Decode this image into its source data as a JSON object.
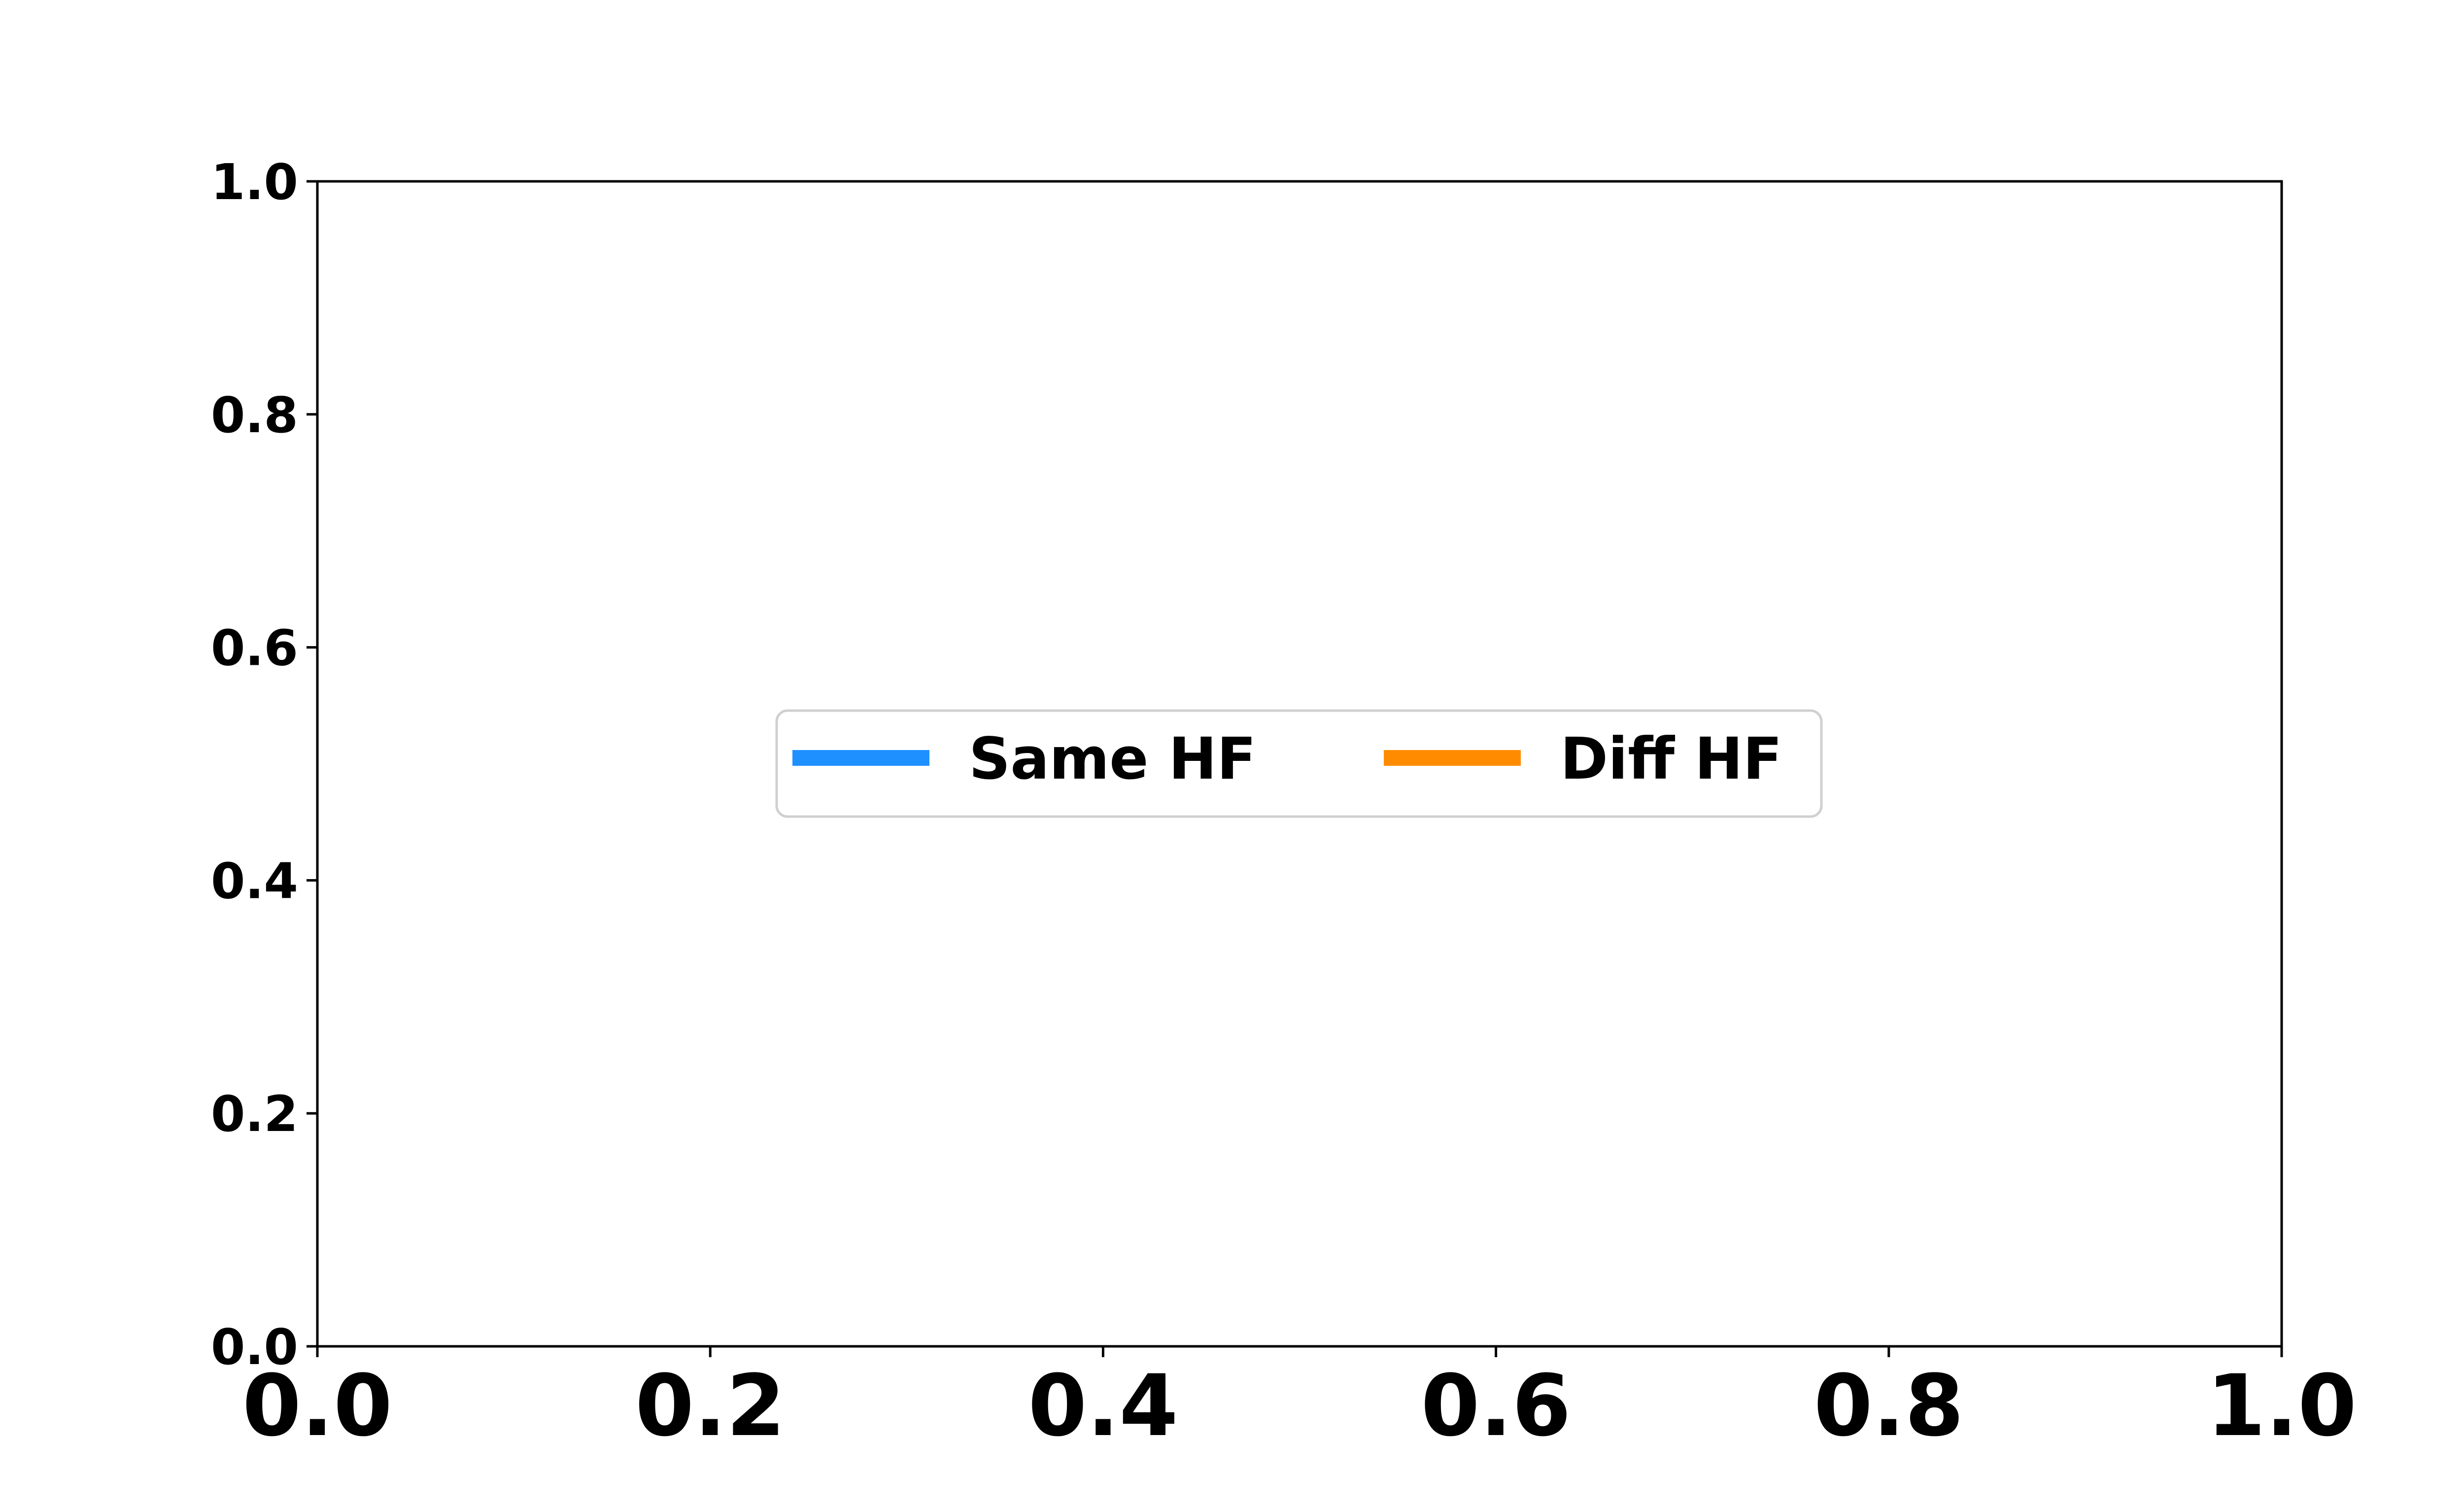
{
  "chart_data": {
    "type": "line",
    "title": "",
    "xlabel": "",
    "ylabel": "",
    "xlim": [
      0.0,
      1.0
    ],
    "ylim": [
      0.0,
      1.0
    ],
    "x_ticks": [
      "0.0",
      "0.2",
      "0.4",
      "0.6",
      "0.8",
      "1.0"
    ],
    "y_ticks": [
      "0.0",
      "0.2",
      "0.4",
      "0.6",
      "0.8",
      "1.0"
    ],
    "grid": false,
    "legend_position": "center",
    "legend_columns": 2,
    "series": [
      {
        "name": "Same HF",
        "color": "#1e90ff",
        "x": [],
        "y": []
      },
      {
        "name": "Diff HF",
        "color": "#ff8c00",
        "x": [],
        "y": []
      }
    ]
  }
}
